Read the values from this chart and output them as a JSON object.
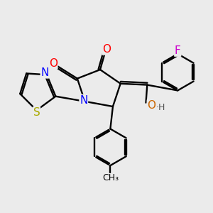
{
  "background_color": "#ebebeb",
  "bond_color": "#000000",
  "atom_colors": {
    "O": "#ff0000",
    "N": "#0000ff",
    "S": "#aaaa00",
    "F": "#cc00cc",
    "OH_color": "#cc6600",
    "C": "#000000"
  },
  "figsize": [
    3.0,
    3.0
  ],
  "dpi": 100
}
